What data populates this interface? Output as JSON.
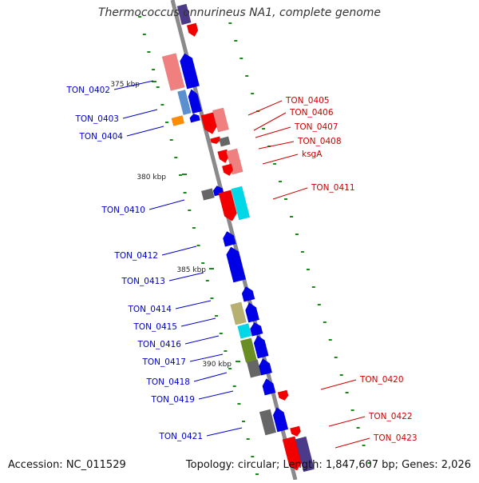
{
  "header": {
    "title": "Thermococcus onnurineus NA1, complete genome"
  },
  "footer": {
    "accession": "Accession: NC_011529",
    "topology": "Topology: circular; Length: 1,847,607 bp; Genes: 2,026"
  },
  "scale_marks": [
    "375 kbp",
    "380 kbp",
    "385 kbp",
    "390 kbp"
  ],
  "colors": {
    "forward_strand": "#0000e6",
    "reverse_strand": "#f20000",
    "pink_feature": "#f08080",
    "light_blue_feature": "#5a8fd0",
    "orange_feature": "#ff8c00",
    "cyan_feature": "#00d8e8",
    "khaki_feature": "#b8b070",
    "olive_feature": "#6b8e23",
    "gray_feature": "#666666",
    "purple_feature": "#4b3a8a",
    "backbone": "#8a8a8a",
    "tick": "#1a8a1a"
  },
  "gene_labels": {
    "left": [
      {
        "id": "TON_0402",
        "label": "TON_0402",
        "color": "#0000cc"
      },
      {
        "id": "TON_0403",
        "label": "TON_0403",
        "color": "#0000cc"
      },
      {
        "id": "TON_0404",
        "label": "TON_0404",
        "color": "#0000cc"
      },
      {
        "id": "TON_0410",
        "label": "TON_0410",
        "color": "#0000cc"
      },
      {
        "id": "TON_0412",
        "label": "TON_0412",
        "color": "#0000cc"
      },
      {
        "id": "TON_0413",
        "label": "TON_0413",
        "color": "#0000cc"
      },
      {
        "id": "TON_0414",
        "label": "TON_0414",
        "color": "#0000cc"
      },
      {
        "id": "TON_0415",
        "label": "TON_0415",
        "color": "#0000cc"
      },
      {
        "id": "TON_0416",
        "label": "TON_0416",
        "color": "#0000cc"
      },
      {
        "id": "TON_0417",
        "label": "TON_0417",
        "color": "#0000cc"
      },
      {
        "id": "TON_0418",
        "label": "TON_0418",
        "color": "#0000cc"
      },
      {
        "id": "TON_0419",
        "label": "TON_0419",
        "color": "#0000cc"
      },
      {
        "id": "TON_0421",
        "label": "TON_0421",
        "color": "#0000cc"
      }
    ],
    "right": [
      {
        "id": "TON_0405",
        "label": "TON_0405",
        "color": "#cc0000"
      },
      {
        "id": "TON_0406",
        "label": "TON_0406",
        "color": "#cc0000"
      },
      {
        "id": "TON_0407",
        "label": "TON_0407",
        "color": "#cc0000"
      },
      {
        "id": "TON_0408",
        "label": "TON_0408",
        "color": "#cc0000"
      },
      {
        "id": "ksgA",
        "label": "ksgA",
        "color": "#cc0000"
      },
      {
        "id": "TON_0411",
        "label": "TON_0411",
        "color": "#cc0000"
      },
      {
        "id": "TON_0420",
        "label": "TON_0420",
        "color": "#cc0000"
      },
      {
        "id": "TON_0422",
        "label": "TON_0422",
        "color": "#cc0000"
      },
      {
        "id": "TON_0423",
        "label": "TON_0423",
        "color": "#cc0000"
      }
    ]
  }
}
